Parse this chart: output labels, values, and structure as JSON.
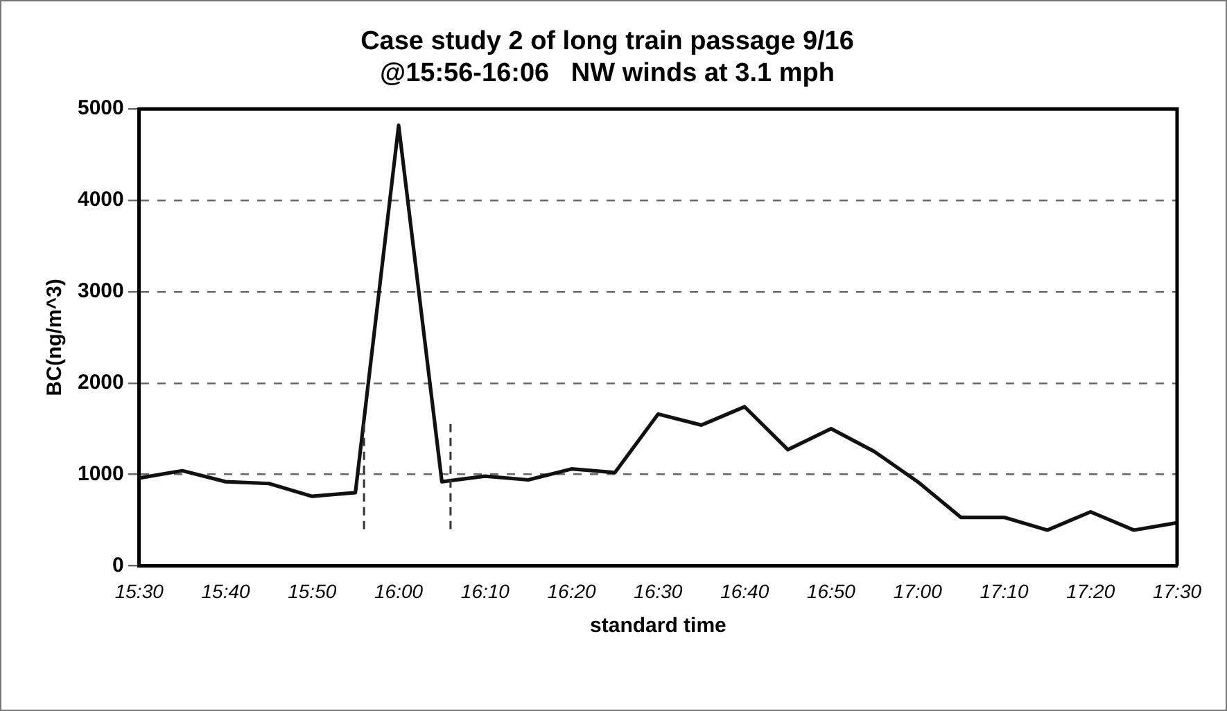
{
  "chart_data": {
    "type": "line",
    "title": "Case study 2 of long train passage 9/16",
    "subtitle": "@15:56-16:06   NW winds at 3.1 mph",
    "xlabel": "standard time",
    "ylabel": "BC(ng/m^3)",
    "x": [
      15.5,
      15.5833,
      15.6667,
      15.75,
      15.8333,
      15.9167,
      16,
      16.0833,
      16.1667,
      16.25,
      16.3333,
      16.4167,
      16.5,
      16.5833,
      16.6667,
      16.75,
      16.8333,
      16.9167,
      17,
      17.0833,
      17.1667,
      17.25,
      17.3333,
      17.4167,
      17.5
    ],
    "series": [
      {
        "color": "#111111",
        "values": [
          960,
          1040,
          920,
          900,
          760,
          800,
          4820,
          920,
          980,
          940,
          1060,
          1020,
          1660,
          1540,
          1740,
          1270,
          1500,
          1250,
          920,
          530,
          530,
          390,
          590,
          390,
          470
        ]
      }
    ],
    "xlim": [
      15.5,
      17.5
    ],
    "xticks": [
      {
        "value": 15.5,
        "label": "15:30"
      },
      {
        "value": 15.6667,
        "label": "15:40"
      },
      {
        "value": 15.8333,
        "label": "15:50"
      },
      {
        "value": 16,
        "label": "16:00"
      },
      {
        "value": 16.1667,
        "label": "16:10"
      },
      {
        "value": 16.3333,
        "label": "16:20"
      },
      {
        "value": 16.5,
        "label": "16:30"
      },
      {
        "value": 16.6667,
        "label": "16:40"
      },
      {
        "value": 16.8333,
        "label": "16:50"
      },
      {
        "value": 17,
        "label": "17:00"
      },
      {
        "value": 17.1667,
        "label": "17:10"
      },
      {
        "value": 17.3333,
        "label": "17:20"
      },
      {
        "value": 17.5,
        "label": "17:30"
      }
    ],
    "ylim": [
      0,
      5000
    ],
    "yticks": [
      0,
      1000,
      2000,
      3000,
      4000,
      5000
    ],
    "ref_lines": [
      {
        "axis": "x",
        "value": 15.9333,
        "color": "#333333",
        "line_style": "dashed"
      },
      {
        "axis": "x",
        "value": 16.1,
        "color": "#333333",
        "line_style": "dashed"
      }
    ],
    "grid": "y",
    "legend": false,
    "marker": "none",
    "line_style": "solid"
  }
}
